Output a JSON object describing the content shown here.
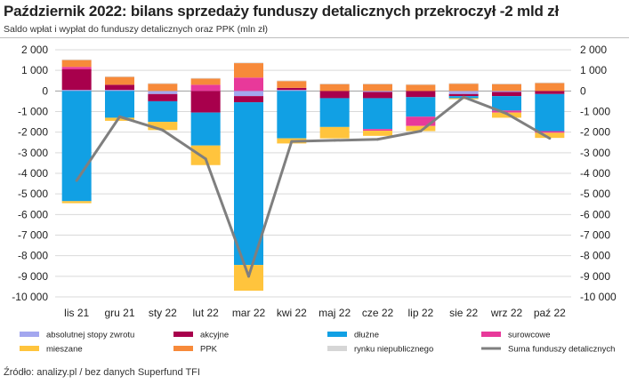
{
  "title": "Październik 2022: bilans sprzedaży funduszy detalicznych przekroczył -2 mld zł",
  "subtitle": "Saldo wpłat i wypłat do funduszy detalicznych oraz PPK (mln zł)",
  "source": "Źródło: analizy.pl / bez danych Superfund TFI",
  "colors": {
    "absolutnej_stopy_zwrotu": "#a3a7ef",
    "akcyjne": "#a8004c",
    "dluzne": "#11a0e4",
    "surowcowe": "#e8399a",
    "mieszane": "#ffc43d",
    "ppk": "#f78a3a",
    "rynku_niepublicznego": "#d6d6d6",
    "suma": "#7f7f7f",
    "grid": "#d9d9d9"
  },
  "chart_data": {
    "type": "bar",
    "stacked": true,
    "categories": [
      "lis 21",
      "gru 21",
      "sty 22",
      "lut 22",
      "mar 22",
      "kwi 22",
      "maj 22",
      "cze 22",
      "lip 22",
      "sie 22",
      "wrz 22",
      "paź 22"
    ],
    "ylim": [
      -10000,
      2000
    ],
    "yticks": [
      2000,
      1000,
      0,
      -1000,
      -2000,
      -3000,
      -4000,
      -5000,
      -6000,
      -7000,
      -8000,
      -9000,
      -10000
    ],
    "ytick_labels": [
      "2 000",
      "1 000",
      "0",
      "-1 000",
      "-2 000",
      "-3 000",
      "-4 000",
      "-5 000",
      "-6 000",
      "-7 000",
      "-8 000",
      "-9 000",
      "-10 000"
    ],
    "series": [
      {
        "key": "absolutnej_stopy_zwrotu",
        "name": "absolutnej stopy zwrotu",
        "values": [
          50,
          50,
          -150,
          0,
          -250,
          50,
          0,
          -50,
          0,
          -150,
          -50,
          0
        ]
      },
      {
        "key": "akcyjne",
        "name": "akcyjne",
        "values": [
          1000,
          250,
          -350,
          -1050,
          -300,
          100,
          -350,
          -300,
          -300,
          -100,
          -200,
          -150
        ]
      },
      {
        "key": "dluzne",
        "name": "dłużne",
        "values": [
          -5350,
          -1300,
          -1000,
          -1600,
          -7900,
          -2300,
          -1400,
          -1500,
          -950,
          -100,
          -700,
          -1800
        ]
      },
      {
        "key": "surowcowe",
        "name": "surowcowe",
        "values": [
          120,
          0,
          0,
          300,
          650,
          0,
          0,
          -80,
          -450,
          0,
          -100,
          -80
        ]
      },
      {
        "key": "mieszane",
        "name": "mieszane",
        "values": [
          -100,
          -150,
          -400,
          -950,
          -1250,
          -250,
          -550,
          -250,
          -250,
          -50,
          -250,
          -250
        ]
      },
      {
        "key": "ppk",
        "name": "PPK",
        "values": [
          330,
          380,
          350,
          300,
          700,
          330,
          330,
          330,
          300,
          350,
          330,
          380
        ]
      },
      {
        "key": "rynku_niepublicznego",
        "name": "rynku niepublicznego",
        "values": [
          30,
          30,
          30,
          30,
          30,
          30,
          30,
          30,
          30,
          30,
          30,
          30
        ]
      }
    ],
    "line": {
      "key": "suma",
      "name": "Suma funduszy detalicznych",
      "values": [
        -4350,
        -1250,
        -1900,
        -3300,
        -9000,
        -2450,
        -2400,
        -2350,
        -1950,
        -300,
        -1100,
        -2300
      ]
    },
    "legend_position": "bottom",
    "grid": true
  }
}
